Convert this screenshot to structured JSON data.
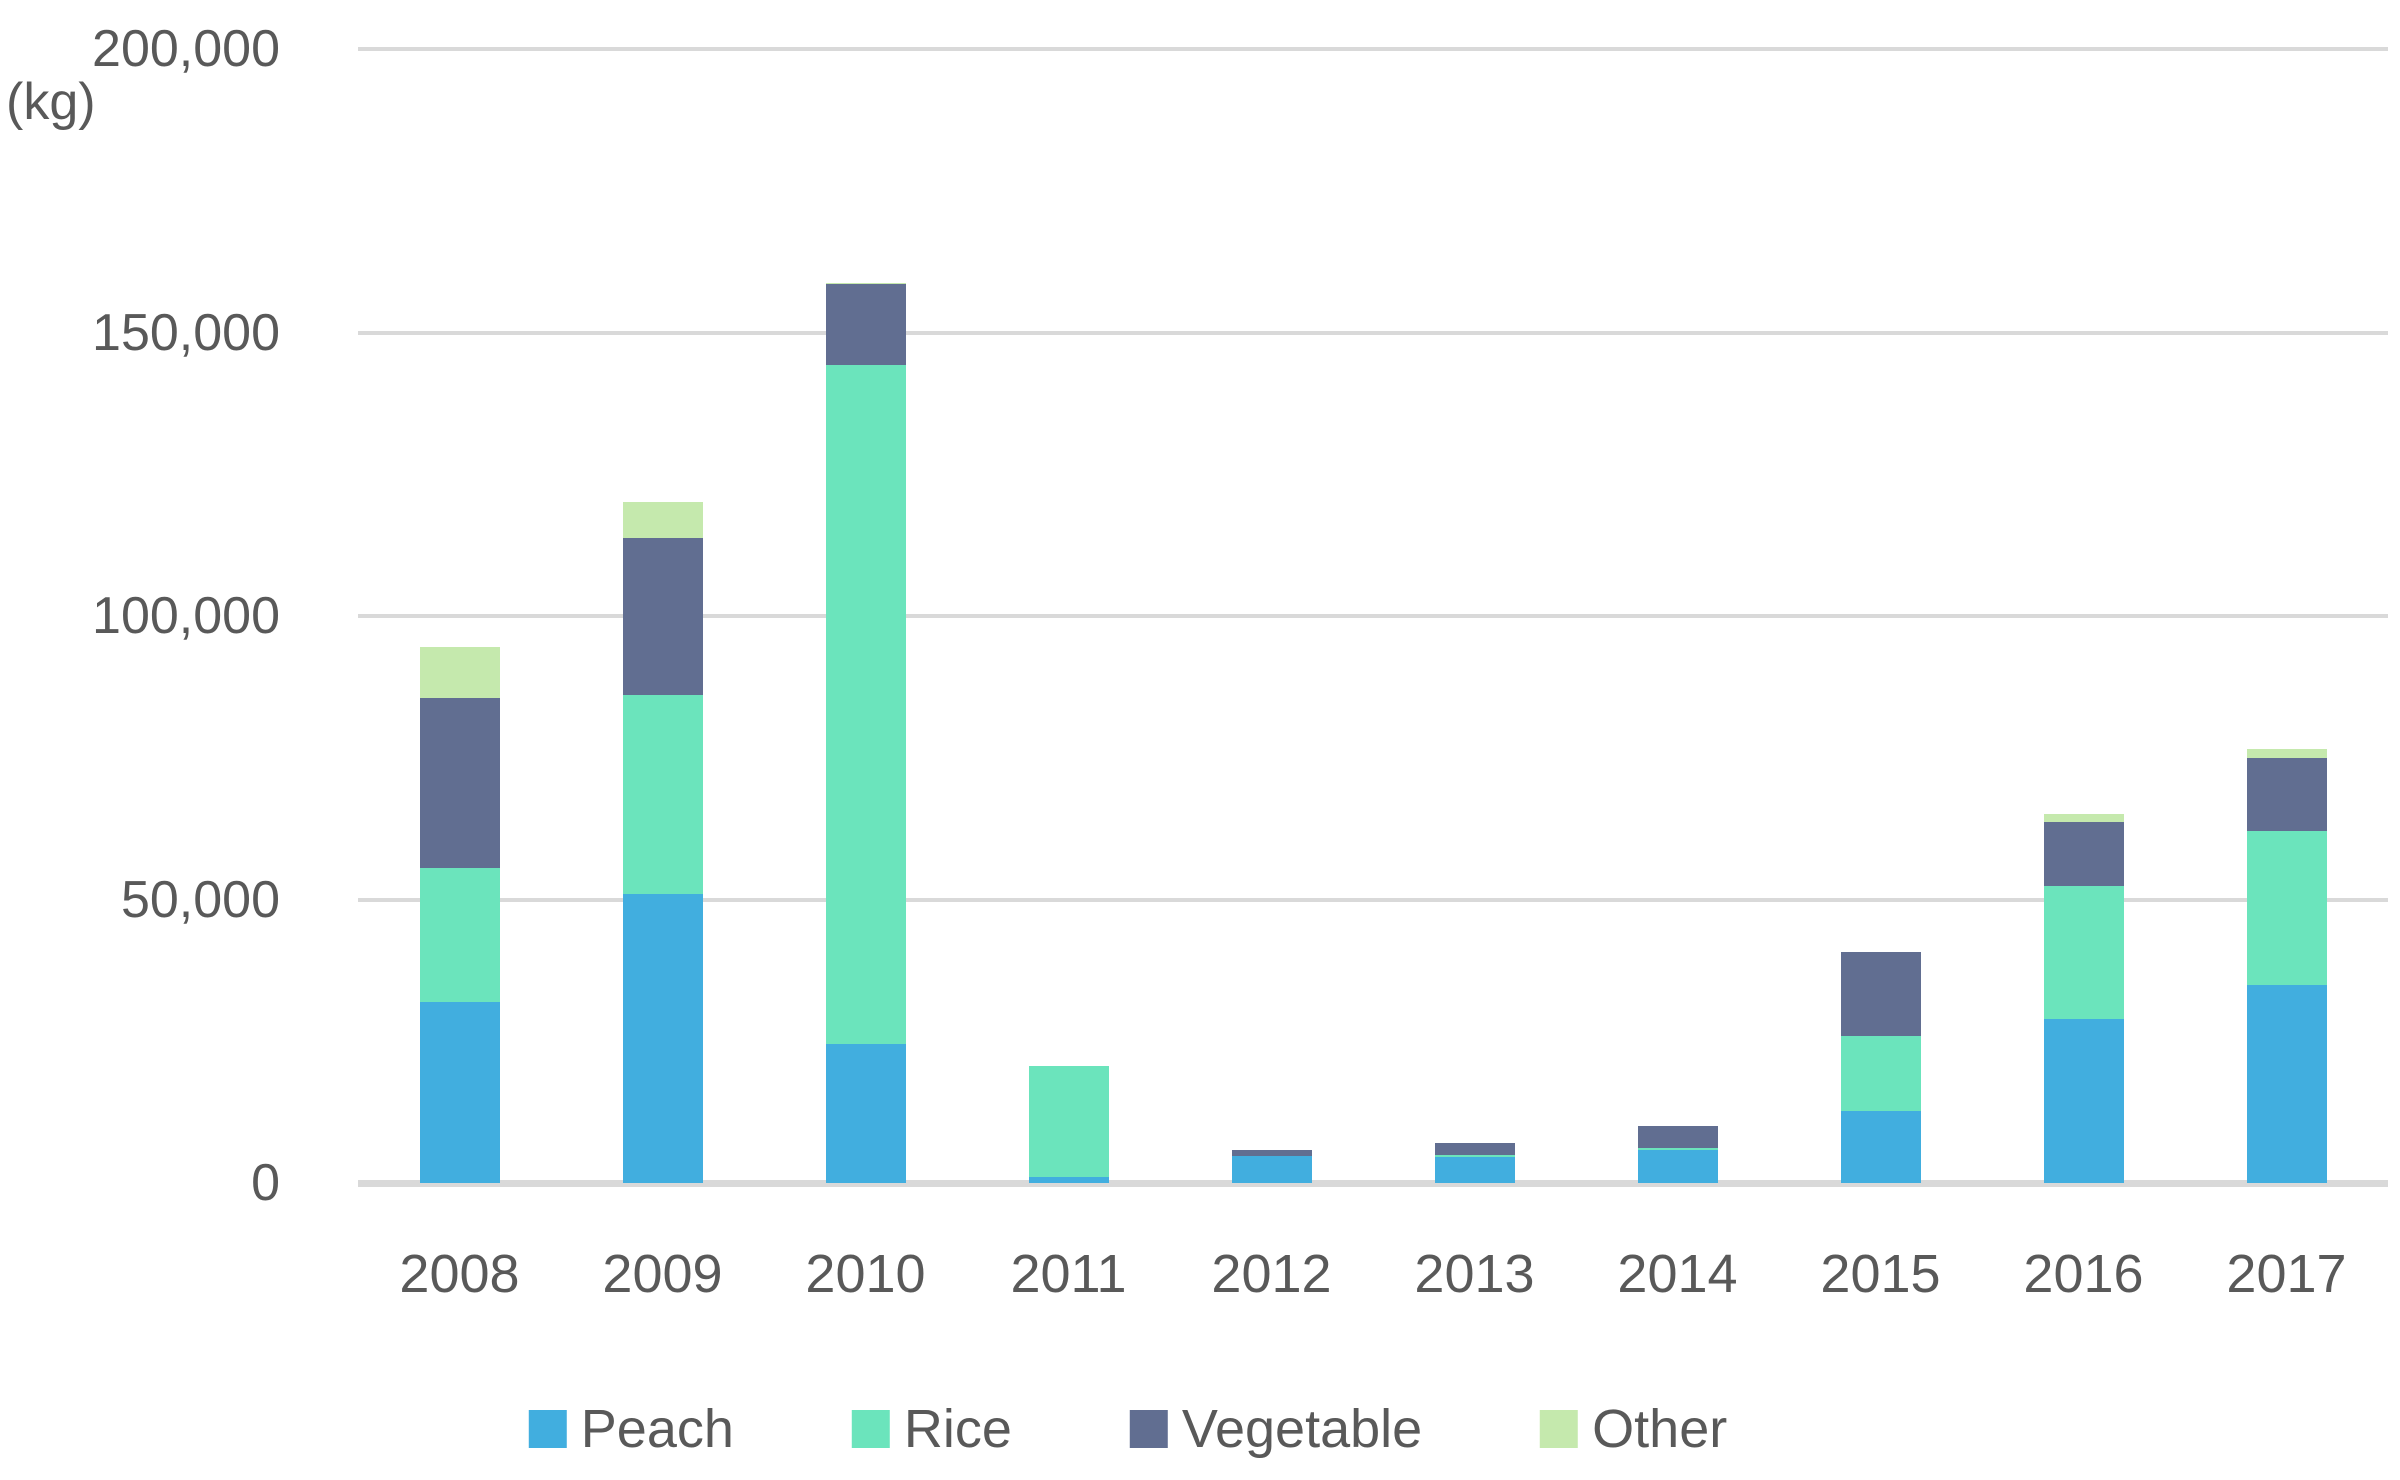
{
  "chart_data": {
    "type": "bar",
    "stacked": true,
    "title": "",
    "unit_label": "(kg)",
    "categories": [
      "2008",
      "2009",
      "2010",
      "2011",
      "2012",
      "2013",
      "2014",
      "2015",
      "2016",
      "2017"
    ],
    "series": [
      {
        "name": "Peach",
        "color": "#41AEDF",
        "values": [
          32000,
          51000,
          24500,
          1000,
          4800,
          4600,
          5800,
          12700,
          29000,
          35000
        ]
      },
      {
        "name": "Rice",
        "color": "#6BE4BC",
        "values": [
          23500,
          35000,
          119700,
          19600,
          0,
          400,
          300,
          13300,
          23400,
          27000
        ]
      },
      {
        "name": "Vegetable",
        "color": "#616E91",
        "values": [
          30000,
          27800,
          14300,
          0,
          1000,
          2000,
          3900,
          14800,
          11300,
          13000
        ]
      },
      {
        "name": "Other",
        "color": "#C5E9AD",
        "values": [
          9000,
          6300,
          300,
          0,
          0,
          0,
          0,
          0,
          1300,
          1500
        ]
      }
    ],
    "ylim": [
      0,
      200000
    ],
    "yticks": [
      {
        "value": 0,
        "label": "0"
      },
      {
        "value": 50000,
        "label": "50,000"
      },
      {
        "value": 100000,
        "label": "100,000"
      },
      {
        "value": 150000,
        "label": "150,000"
      },
      {
        "value": 200000,
        "label": "200,000"
      }
    ],
    "grid": "horizontal",
    "legend_position": "bottom"
  },
  "colors": {
    "gridline": "#d9d9d9",
    "baseline": "#d9d9d9",
    "axis_text": "#595959"
  }
}
